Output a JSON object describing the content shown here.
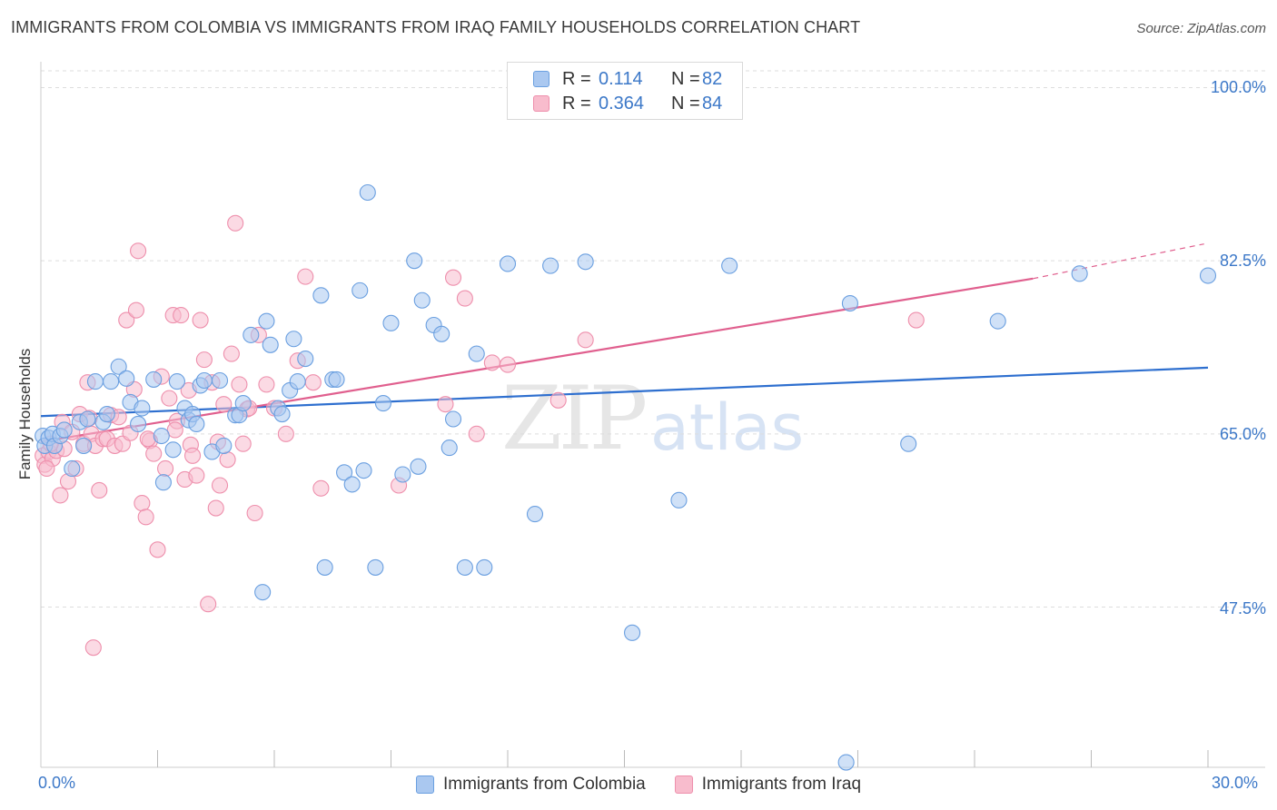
{
  "title": "IMMIGRANTS FROM COLOMBIA VS IMMIGRANTS FROM IRAQ FAMILY HOUSEHOLDS CORRELATION CHART",
  "source": "Source: ZipAtlas.com",
  "watermark": {
    "zip": "ZIP",
    "atlas": "atlas"
  },
  "legend": {
    "r_label": "R =",
    "n_label": "N =",
    "colombia": {
      "r": "0.114",
      "n": "82"
    },
    "iraq": {
      "r": "0.364",
      "n": "84"
    }
  },
  "colors": {
    "colombia_fill": "#aac8f0",
    "colombia_stroke": "#6a9fe0",
    "colombia_line": "#2e6fcf",
    "iraq_fill": "#f8bccd",
    "iraq_stroke": "#ee8fac",
    "iraq_line": "#e05f8e",
    "tick_text": "#3c78c8",
    "grid": "#dddddd"
  },
  "chart_data": {
    "type": "scatter",
    "title": "IMMIGRANTS FROM COLOMBIA VS IMMIGRANTS FROM IRAQ FAMILY HOUSEHOLDS CORRELATION CHART",
    "xlabel": "",
    "ylabel": "Family Households",
    "xlim": [
      0,
      30
    ],
    "ylim": [
      31.3,
      101.7
    ],
    "x_tick_labels": [
      "0.0%",
      "30.0%"
    ],
    "y_ticks": [
      47.5,
      65.0,
      82.5,
      100.0
    ],
    "y_tick_labels": [
      "47.5%",
      "65.0%",
      "82.5%",
      "100.0%"
    ],
    "grid": true,
    "legend_position": "bottom",
    "series": [
      {
        "name": "Immigrants from Colombia",
        "trend": [
          [
            0,
            66.8
          ],
          [
            30,
            71.7
          ]
        ],
        "points": [
          [
            0.05,
            64.8
          ],
          [
            0.1,
            63.8
          ],
          [
            0.2,
            64.6
          ],
          [
            0.3,
            65.0
          ],
          [
            0.35,
            63.8
          ],
          [
            0.5,
            64.8
          ],
          [
            0.6,
            65.4
          ],
          [
            0.8,
            61.5
          ],
          [
            1.0,
            66.2
          ],
          [
            1.1,
            63.8
          ],
          [
            1.2,
            66.5
          ],
          [
            1.4,
            70.3
          ],
          [
            1.6,
            66.2
          ],
          [
            1.7,
            67.0
          ],
          [
            1.8,
            70.3
          ],
          [
            2.0,
            71.8
          ],
          [
            2.2,
            70.6
          ],
          [
            2.3,
            68.2
          ],
          [
            2.5,
            66.0
          ],
          [
            2.6,
            67.6
          ],
          [
            2.9,
            70.5
          ],
          [
            3.1,
            64.8
          ],
          [
            3.15,
            60.1
          ],
          [
            3.4,
            63.4
          ],
          [
            3.5,
            70.3
          ],
          [
            3.7,
            67.6
          ],
          [
            3.8,
            66.4
          ],
          [
            3.9,
            67.0
          ],
          [
            4.0,
            66.0
          ],
          [
            4.1,
            69.9
          ],
          [
            4.2,
            70.4
          ],
          [
            4.4,
            63.2
          ],
          [
            4.6,
            70.4
          ],
          [
            4.7,
            63.8
          ],
          [
            5.0,
            66.9
          ],
          [
            5.1,
            66.9
          ],
          [
            5.2,
            68.1
          ],
          [
            5.4,
            75.0
          ],
          [
            5.7,
            49.0
          ],
          [
            5.8,
            76.4
          ],
          [
            5.9,
            74.0
          ],
          [
            6.1,
            67.6
          ],
          [
            6.2,
            67.0
          ],
          [
            6.4,
            69.4
          ],
          [
            6.5,
            74.6
          ],
          [
            6.6,
            70.3
          ],
          [
            6.8,
            72.6
          ],
          [
            7.2,
            79.0
          ],
          [
            7.3,
            51.5
          ],
          [
            7.5,
            70.5
          ],
          [
            7.6,
            70.5
          ],
          [
            7.8,
            61.1
          ],
          [
            8.0,
            59.9
          ],
          [
            8.2,
            79.5
          ],
          [
            8.3,
            61.3
          ],
          [
            8.4,
            89.4
          ],
          [
            8.6,
            51.5
          ],
          [
            8.8,
            68.1
          ],
          [
            9.0,
            76.2
          ],
          [
            9.3,
            60.9
          ],
          [
            9.6,
            82.5
          ],
          [
            9.7,
            61.7
          ],
          [
            9.8,
            78.5
          ],
          [
            10.1,
            76.0
          ],
          [
            10.3,
            75.1
          ],
          [
            10.5,
            63.6
          ],
          [
            10.6,
            66.5
          ],
          [
            10.9,
            51.5
          ],
          [
            11.2,
            73.1
          ],
          [
            11.4,
            51.5
          ],
          [
            12.0,
            82.2
          ],
          [
            12.7,
            56.9
          ],
          [
            13.1,
            82.0
          ],
          [
            14.0,
            82.4
          ],
          [
            15.2,
            44.9
          ],
          [
            16.4,
            58.3
          ],
          [
            17.7,
            82.0
          ],
          [
            20.7,
            31.8
          ],
          [
            20.8,
            78.2
          ],
          [
            22.3,
            64.0
          ],
          [
            24.6,
            76.4
          ],
          [
            26.7,
            81.2
          ],
          [
            30.0,
            81.0
          ]
        ]
      },
      {
        "name": "Immigrants from Iraq",
        "trend": [
          [
            0,
            64.2
          ],
          [
            25.5,
            80.7
          ]
        ],
        "trend_dashed": [
          [
            25.5,
            80.7
          ],
          [
            29.9,
            84.2
          ]
        ],
        "points": [
          [
            0.05,
            62.8
          ],
          [
            0.1,
            61.9
          ],
          [
            0.2,
            63.2
          ],
          [
            0.3,
            62.5
          ],
          [
            0.4,
            63.3
          ],
          [
            0.5,
            58.8
          ],
          [
            0.55,
            66.2
          ],
          [
            0.6,
            63.5
          ],
          [
            0.8,
            65.2
          ],
          [
            0.9,
            61.5
          ],
          [
            1.0,
            67.0
          ],
          [
            1.1,
            64.0
          ],
          [
            1.2,
            70.2
          ],
          [
            1.3,
            65.0
          ],
          [
            1.4,
            63.8
          ],
          [
            1.5,
            59.3
          ],
          [
            1.6,
            64.5
          ],
          [
            1.7,
            64.5
          ],
          [
            1.8,
            66.9
          ],
          [
            1.9,
            63.8
          ],
          [
            2.0,
            66.7
          ],
          [
            2.1,
            64.0
          ],
          [
            2.2,
            76.5
          ],
          [
            2.3,
            65.1
          ],
          [
            2.4,
            69.5
          ],
          [
            2.45,
            77.5
          ],
          [
            2.5,
            83.5
          ],
          [
            2.6,
            58.0
          ],
          [
            2.7,
            56.6
          ],
          [
            2.8,
            64.3
          ],
          [
            2.9,
            63.0
          ],
          [
            3.0,
            53.3
          ],
          [
            3.1,
            70.8
          ],
          [
            3.2,
            61.5
          ],
          [
            3.3,
            68.6
          ],
          [
            3.4,
            77.0
          ],
          [
            3.5,
            66.3
          ],
          [
            3.6,
            77.0
          ],
          [
            3.7,
            60.4
          ],
          [
            3.8,
            69.4
          ],
          [
            3.85,
            63.9
          ],
          [
            3.9,
            62.8
          ],
          [
            4.0,
            60.8
          ],
          [
            4.1,
            76.5
          ],
          [
            4.2,
            72.5
          ],
          [
            4.3,
            47.8
          ],
          [
            4.4,
            70.2
          ],
          [
            4.5,
            57.5
          ],
          [
            4.6,
            59.8
          ],
          [
            4.7,
            68.0
          ],
          [
            4.8,
            62.4
          ],
          [
            4.9,
            73.1
          ],
          [
            5.0,
            86.3
          ],
          [
            5.1,
            70.0
          ],
          [
            5.2,
            64.0
          ],
          [
            5.3,
            67.5
          ],
          [
            5.5,
            57.0
          ],
          [
            5.6,
            75.0
          ],
          [
            5.8,
            70.0
          ],
          [
            6.0,
            67.6
          ],
          [
            6.3,
            65.0
          ],
          [
            6.6,
            72.4
          ],
          [
            6.8,
            80.9
          ],
          [
            7.0,
            70.2
          ],
          [
            7.2,
            59.5
          ],
          [
            9.2,
            59.8
          ],
          [
            10.4,
            68.0
          ],
          [
            10.6,
            80.8
          ],
          [
            10.9,
            78.7
          ],
          [
            11.2,
            65.0
          ],
          [
            11.6,
            72.2
          ],
          [
            12.0,
            72.0
          ],
          [
            13.3,
            68.4
          ],
          [
            14.0,
            74.5
          ],
          [
            22.5,
            76.5
          ],
          [
            0.7,
            60.2
          ],
          [
            1.35,
            43.4
          ],
          [
            2.75,
            64.5
          ],
          [
            3.45,
            65.4
          ],
          [
            5.35,
            67.6
          ],
          [
            0.15,
            61.5
          ],
          [
            0.25,
            64.0
          ],
          [
            1.25,
            66.6
          ],
          [
            4.55,
            64.2
          ]
        ]
      }
    ]
  }
}
